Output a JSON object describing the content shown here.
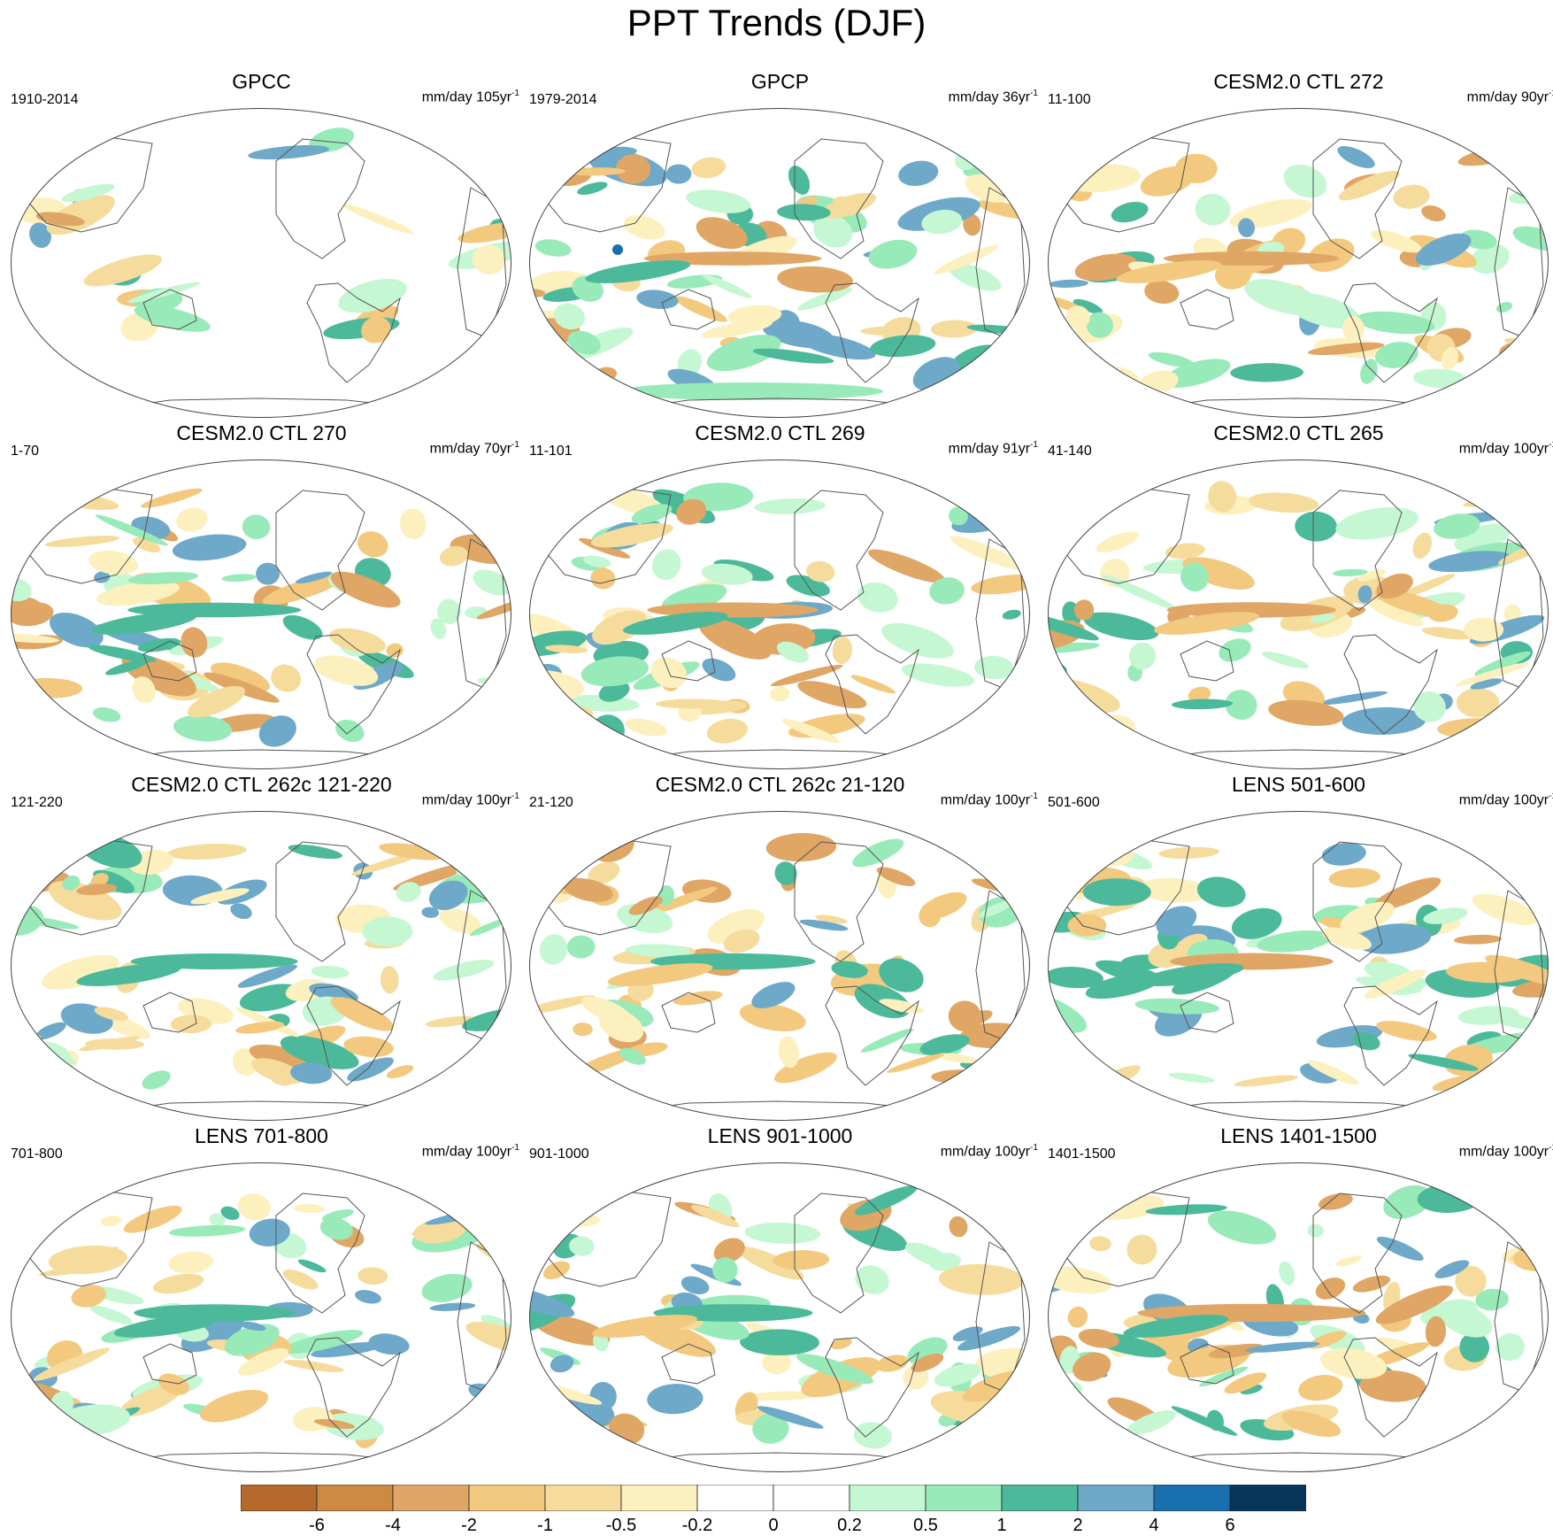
{
  "title": "PPT Trends (DJF)",
  "panels": [
    {
      "title": "GPCC",
      "period": "1910-2014",
      "units": "mm/day 105yr",
      "sup": "-1"
    },
    {
      "title": "GPCP",
      "period": "1979-2014",
      "units": "mm/day 36yr",
      "sup": "-1"
    },
    {
      "title": "CESM2.0 CTL 272",
      "period": "11-100",
      "units": "mm/day 90yr",
      "sup": "-1"
    },
    {
      "title": "CESM2.0 CTL 270",
      "period": "1-70",
      "units": "mm/day 70yr",
      "sup": "-1"
    },
    {
      "title": "CESM2.0 CTL 269",
      "period": "11-101",
      "units": "mm/day 91yr",
      "sup": "-1"
    },
    {
      "title": "CESM2.0 CTL 265",
      "period": "41-140",
      "units": "mm/day 100yr",
      "sup": "-1"
    },
    {
      "title": "CESM2.0 CTL 262c 121-220",
      "period": "121-220",
      "units": "mm/day 100yr",
      "sup": "-1"
    },
    {
      "title": "CESM2.0 CTL 262c 21-120",
      "period": "21-120",
      "units": "mm/day 100yr",
      "sup": "-1"
    },
    {
      "title": "LENS 501-600",
      "period": "501-600",
      "units": "mm/day 100yr",
      "sup": "-1"
    },
    {
      "title": "LENS 701-800",
      "period": "701-800",
      "units": "mm/day 100yr",
      "sup": "-1"
    },
    {
      "title": "LENS 901-1000",
      "period": "901-1000",
      "units": "mm/day 100yr",
      "sup": "-1"
    },
    {
      "title": "LENS 1401-1500",
      "period": "1401-1500",
      "units": "mm/day 100yr",
      "sup": "-1"
    }
  ],
  "colorbar": {
    "colors": [
      "#b5692a",
      "#cd8a42",
      "#dfa665",
      "#f2c97f",
      "#f6dc9c",
      "#fdf0bf",
      "#ffffff",
      "#ffffff",
      "#c5f7d3",
      "#98eab8",
      "#4cba9a",
      "#6ea9c9",
      "#1a6fae",
      "#07365a"
    ],
    "labels": [
      "-6",
      "-4",
      "-2",
      "-1",
      "-0.5",
      "-0.2",
      "0",
      "0.2",
      "0.5",
      "1",
      "2",
      "4",
      "6"
    ]
  }
}
